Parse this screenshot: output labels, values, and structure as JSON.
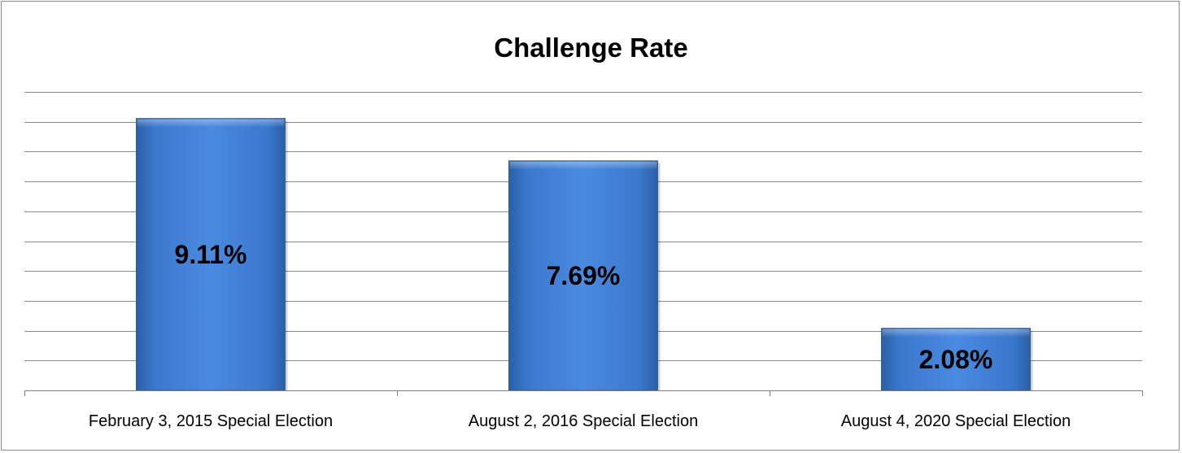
{
  "chart_data": {
    "type": "bar",
    "title": "Challenge Rate",
    "xlabel": "",
    "ylabel": "",
    "categories": [
      "February 3, 2015 Special Election",
      "August 2, 2016 Special Election",
      "August 4, 2020 Special Election"
    ],
    "values": [
      9.11,
      7.69,
      2.08
    ],
    "data_labels": [
      "9.11%",
      "7.69%",
      "2.08%"
    ],
    "ylim": [
      0,
      10
    ],
    "grid": true,
    "bar_color": "#3e7fd2",
    "legend": "none"
  }
}
